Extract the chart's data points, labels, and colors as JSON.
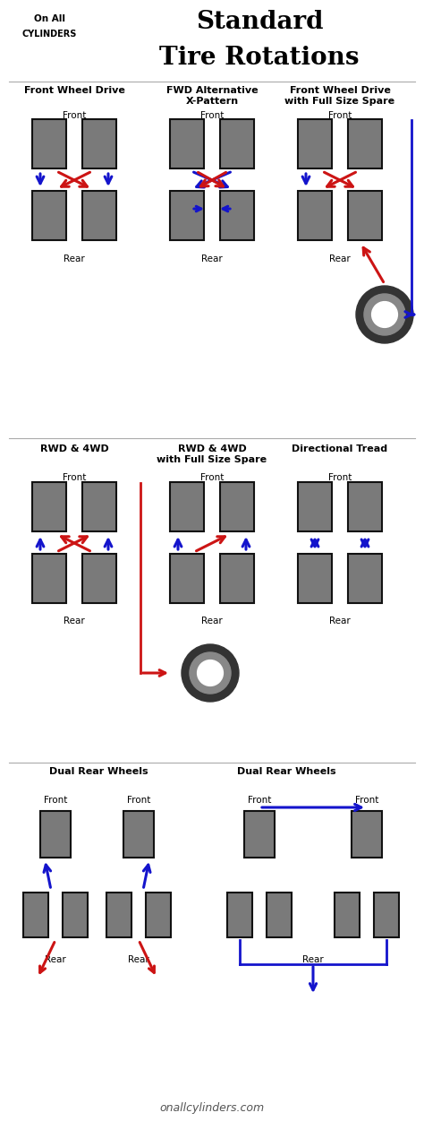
{
  "bg_color": "#ffffff",
  "tire_color": "#7a7a7a",
  "tire_border": "#111111",
  "blue": "#1414cc",
  "red": "#cc1414",
  "footer": "onallcylinders.com",
  "title_line1": "Standard",
  "title_line2": "Tire Rotations"
}
